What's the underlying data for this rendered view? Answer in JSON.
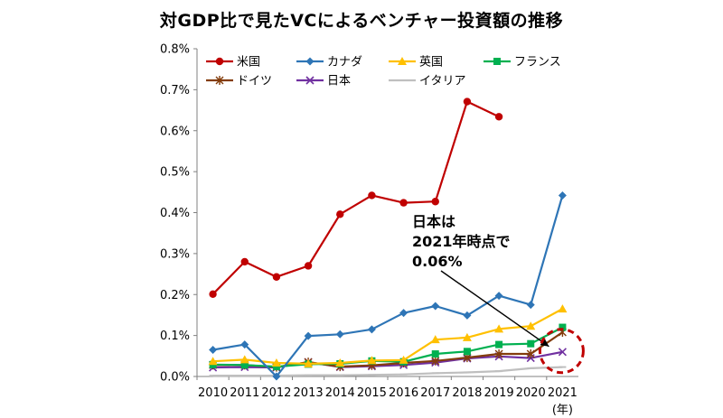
{
  "chart_data": {
    "type": "line",
    "title": "対GDP比で見たVCによるベンチャー投資額の推移",
    "x_unit": "(年)",
    "categories": [
      "2010",
      "2011",
      "2012",
      "2013",
      "2014",
      "2015",
      "2016",
      "2017",
      "2018",
      "2019",
      "2020",
      "2021"
    ],
    "y_ticks": [
      "0.0%",
      "0.1%",
      "0.2%",
      "0.3%",
      "0.4%",
      "0.5%",
      "0.6%",
      "0.7%",
      "0.8%"
    ],
    "ylim": [
      0,
      0.8
    ],
    "y_unit": "%",
    "grid": false,
    "legend_position": "top",
    "series": [
      {
        "name": "米国",
        "color": "#c00000",
        "marker": "circle",
        "values": [
          0.201,
          0.28,
          0.243,
          0.27,
          0.396,
          0.442,
          0.424,
          0.427,
          0.671,
          0.634,
          null,
          null
        ]
      },
      {
        "name": "カナダ",
        "color": "#2e75b6",
        "marker": "diamond",
        "values": [
          0.065,
          0.078,
          0.0,
          0.099,
          0.103,
          0.115,
          0.155,
          0.172,
          0.149,
          0.197,
          0.175,
          0.442
        ]
      },
      {
        "name": "英国",
        "color": "#ffc000",
        "marker": "triangle",
        "values": [
          0.037,
          0.041,
          0.033,
          0.031,
          0.033,
          0.039,
          0.04,
          0.09,
          0.095,
          0.116,
          0.123,
          0.165
        ]
      },
      {
        "name": "フランス",
        "color": "#00b050",
        "marker": "square",
        "values": [
          0.029,
          0.028,
          0.024,
          0.03,
          0.031,
          0.038,
          0.036,
          0.055,
          0.061,
          0.078,
          0.08,
          0.12
        ]
      },
      {
        "name": "ドイツ",
        "color": "#833c0b",
        "marker": "star",
        "values": [
          0.028,
          0.028,
          0.023,
          0.035,
          0.024,
          0.027,
          0.033,
          0.038,
          0.046,
          0.055,
          0.055,
          0.108
        ]
      },
      {
        "name": "日本",
        "color": "#7030a0",
        "marker": "x",
        "values": [
          0.022,
          0.023,
          0.022,
          0.035,
          0.023,
          0.025,
          0.028,
          0.034,
          0.044,
          0.049,
          0.045,
          0.06
        ]
      },
      {
        "name": "イタリア",
        "color": "#bfbfbf",
        "marker": "dash",
        "values": [
          0.002,
          0.002,
          0.002,
          0.003,
          0.003,
          0.004,
          0.005,
          0.008,
          0.01,
          0.013,
          0.02,
          0.023
        ]
      }
    ],
    "annotation": {
      "lines": [
        "日本は",
        "2021年時点で",
        "0.06%"
      ],
      "highlight": {
        "category": "2021",
        "series": "日本",
        "value": 0.06,
        "circle_color": "#c00000"
      }
    }
  }
}
